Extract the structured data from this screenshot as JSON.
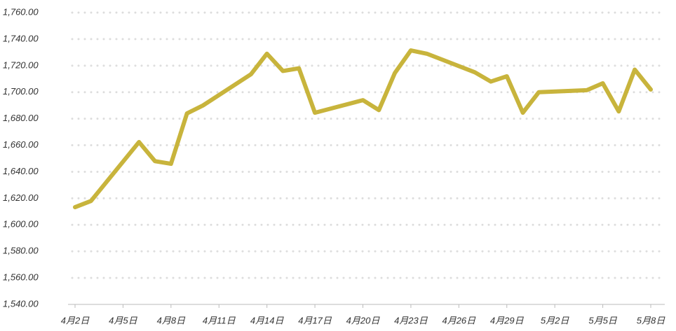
{
  "chart_data": {
    "type": "line",
    "x": [
      "4月2日",
      "4月3日",
      "4月6日",
      "4月7日",
      "4月8日",
      "4月9日",
      "4月10日",
      "4月13日",
      "4月14日",
      "4月15日",
      "4月16日",
      "4月17日",
      "4月20日",
      "4月21日",
      "4月22日",
      "4月23日",
      "4月24日",
      "4月27日",
      "4月28日",
      "4月29日",
      "4月30日",
      "5月1日",
      "5月4日",
      "5月5日",
      "5月6日",
      "5月7日",
      "5月8日"
    ],
    "series": [
      {
        "color": "#c8b43c",
        "values": [
          1613.3,
          1618,
          1662.4,
          1648,
          1646,
          1684,
          1690,
          1713.5,
          1729,
          1716,
          1718,
          1684.5,
          1694,
          1686.5,
          1714.5,
          1731.5,
          1729,
          1715,
          1708,
          1712,
          1684.5,
          1700,
          1701.5,
          1706.7,
          1685.5,
          1717,
          1702
        ]
      }
    ],
    "xlim": [
      "4月2日",
      "5月8日"
    ],
    "xticks": [
      "4月2日",
      "4月5日",
      "4月8日",
      "4月11日",
      "4月14日",
      "4月17日",
      "4月20日",
      "4月23日",
      "4月26日",
      "4月29日",
      "5月2日",
      "5月5日",
      "5月8日"
    ],
    "ylim": [
      1540,
      1760
    ],
    "yticks": [
      {
        "value": 1540,
        "label": "1,540.00"
      },
      {
        "value": 1560,
        "label": "1,560.00"
      },
      {
        "value": 1580,
        "label": "1,580.00"
      },
      {
        "value": 1600,
        "label": "1,600.00"
      },
      {
        "value": 1620,
        "label": "1,620.00"
      },
      {
        "value": 1640,
        "label": "1,640.00"
      },
      {
        "value": 1660,
        "label": "1,660.00"
      },
      {
        "value": 1680,
        "label": "1,680.00"
      },
      {
        "value": 1700,
        "label": "1,700.00"
      },
      {
        "value": 1720,
        "label": "1,720.00"
      },
      {
        "value": 1740,
        "label": "1,740.00"
      },
      {
        "value": 1760,
        "label": "1,760.00"
      }
    ],
    "grid": true
  }
}
